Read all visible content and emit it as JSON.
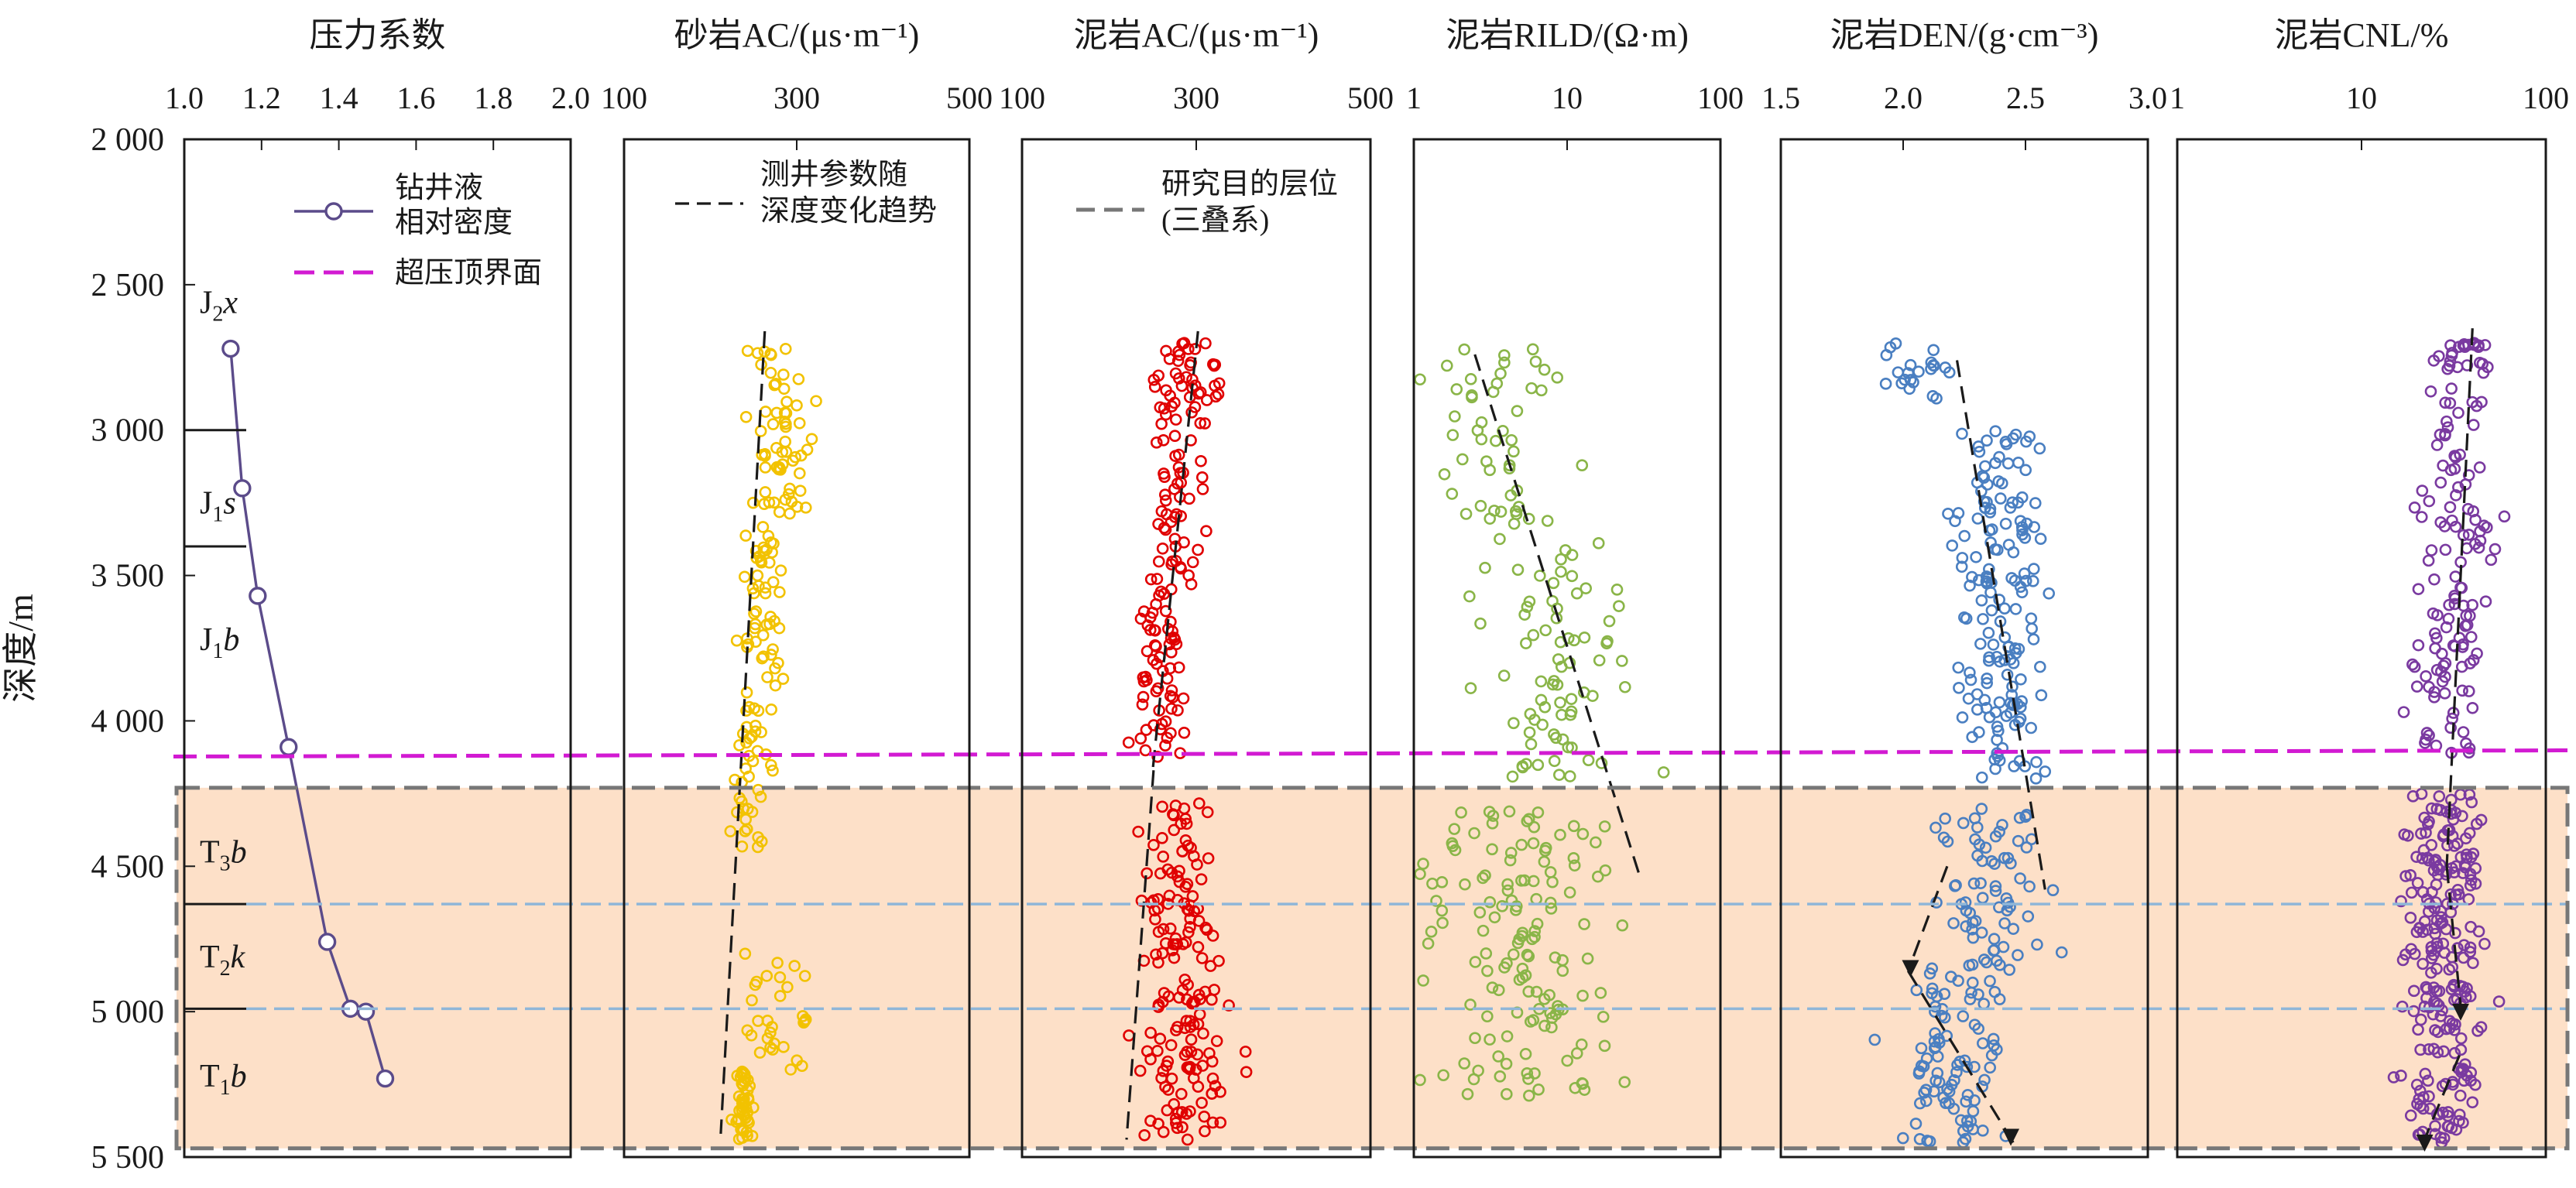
{
  "chart_data": {
    "type": "scatter",
    "shared_y_axis": {
      "label": "深度/m",
      "range": [
        2000,
        5500
      ],
      "ticks": [
        2000,
        2500,
        3000,
        3500,
        4000,
        4500,
        5000,
        5500
      ],
      "tick_labels": [
        "2 000",
        "2 500",
        "3 000",
        "3 500",
        "4 000",
        "4 500",
        "5 000",
        "5 500"
      ]
    },
    "reference_lines": {
      "overpressure_top_depth": 4120,
      "target_zone_depth_range": [
        4230,
        5470
      ],
      "formation_boundaries": [
        3000,
        3400,
        4630,
        4990
      ]
    },
    "formations": [
      "J2x",
      "J1s",
      "J1b",
      "T3b",
      "T2k",
      "T1b"
    ],
    "formation_label_depths": [
      2560,
      3250,
      3720,
      4450,
      4810,
      5220
    ],
    "legend": [
      {
        "label": "钻井液相对密度",
        "line1": "钻井液",
        "line2": "相对密度",
        "style": "line-marker",
        "color": "#5b4b8a"
      },
      {
        "label": "超压顶界面",
        "style": "dashed",
        "color": "#d21ad2"
      },
      {
        "label": "测井参数随深度变化趋势",
        "line1": "测井参数随",
        "line2": "深度变化趋势",
        "style": "dashed",
        "color": "#1a1a1a"
      },
      {
        "label": "研究目的层位(三叠系)",
        "line1": "研究目的层位",
        "line2": "(三叠系)",
        "style": "dashed",
        "color": "#777777"
      }
    ],
    "panels": [
      {
        "id": "pressure",
        "title": "压力系数",
        "scale": "linear",
        "xlim": [
          1.0,
          2.0
        ],
        "ticks": [
          1.0,
          1.2,
          1.4,
          1.6,
          1.8,
          2.0
        ],
        "tick_labels": [
          "1.0",
          "1.2",
          "1.4",
          "1.6",
          "1.8",
          "2.0"
        ],
        "series": [
          {
            "name": "钻井液相对密度",
            "color": "#5b4b8a",
            "x": [
              1.12,
              1.15,
              1.19,
              1.27,
              1.37,
              1.43,
              1.47,
              1.52
            ],
            "y": [
              2720,
              3200,
              3570,
              4090,
              4760,
              4990,
              5000,
              5230
            ]
          }
        ]
      },
      {
        "id": "sand_ac",
        "title": "砂岩AC/(μs·m⁻¹)",
        "scale": "linear",
        "xlim": [
          100,
          500
        ],
        "ticks": [
          100,
          300,
          500
        ],
        "tick_labels": [
          "100",
          "300",
          "500"
        ],
        "trend": [
          {
            "x": [
              263,
              212
            ],
            "y": [
              2660,
              5420
            ]
          }
        ],
        "clusters": [
          {
            "color": "#f2c200",
            "y_range": [
              2720,
              3300
            ],
            "x_mean": 282,
            "x_spread": 38,
            "n": 60
          },
          {
            "color": "#f2c200",
            "y_range": [
              3300,
              4000
            ],
            "x_mean": 262,
            "x_spread": 28,
            "n": 55
          },
          {
            "color": "#f2c200",
            "y_range": [
              4000,
              4450
            ],
            "x_mean": 245,
            "x_spread": 25,
            "n": 35
          },
          {
            "color": "#f2c200",
            "y_range": [
              4800,
              5200
            ],
            "x_mean": 275,
            "x_spread": 35,
            "n": 30
          },
          {
            "color": "#f2c200",
            "y_range": [
              5200,
              5450
            ],
            "x_mean": 238,
            "x_spread": 12,
            "n": 45
          }
        ]
      },
      {
        "id": "mud_ac",
        "title": "泥岩AC/(μs·m⁻¹)",
        "scale": "linear",
        "xlim": [
          100,
          500
        ],
        "ticks": [
          100,
          300,
          500
        ],
        "tick_labels": [
          "100",
          "300",
          "500"
        ],
        "trend": [
          {
            "x": [
              302,
              250
            ],
            "y": [
              2660,
              4170
            ]
          },
          {
            "x": [
              251,
              220
            ],
            "y": [
              4170,
              5440
            ]
          }
        ],
        "clusters": [
          {
            "color": "#e00000",
            "y_range": [
              2700,
              2900
            ],
            "x_mean": 300,
            "x_spread": 38,
            "n": 35
          },
          {
            "color": "#e00000",
            "y_range": [
              2900,
              3500
            ],
            "x_mean": 278,
            "x_spread": 30,
            "n": 55
          },
          {
            "color": "#e00000",
            "y_range": [
              3500,
              4150
            ],
            "x_mean": 262,
            "x_spread": 32,
            "n": 65
          },
          {
            "color": "#e00000",
            "y_range": [
              4280,
              4800
            ],
            "x_mean": 280,
            "x_spread": 48,
            "n": 70
          },
          {
            "color": "#e00000",
            "y_range": [
              4800,
              5450
            ],
            "x_mean": 290,
            "x_spread": 52,
            "n": 95
          }
        ]
      },
      {
        "id": "mud_rild",
        "title": "泥岩RILD/(Ω·m)",
        "scale": "log",
        "xlim": [
          1,
          100
        ],
        "ticks": [
          1,
          10,
          100
        ],
        "tick_labels": [
          "1",
          "10",
          "100"
        ],
        "trend": [
          {
            "x": [
              2.5,
              30
            ],
            "y": [
              2740,
              4540
            ]
          }
        ],
        "clusters": [
          {
            "color": "#8ab548",
            "y_range": [
              2720,
              3300
            ],
            "x_mean": 3.8,
            "x_spread": 0.55,
            "n": 45
          },
          {
            "color": "#8ab548",
            "y_range": [
              3300,
              4200
            ],
            "x_mean": 8.0,
            "x_spread": 0.5,
            "n": 80
          },
          {
            "color": "#8ab548",
            "y_range": [
              4300,
              5300
            ],
            "x_mean": 5.5,
            "x_spread": 0.6,
            "n": 140
          }
        ]
      },
      {
        "id": "mud_den",
        "title": "泥岩DEN/(g·cm⁻³)",
        "scale": "linear",
        "xlim": [
          1.5,
          3.0
        ],
        "ticks": [
          1.5,
          2.0,
          2.5,
          3.0
        ],
        "tick_labels": [
          "1.5",
          "2.0",
          "2.5",
          "3.0"
        ],
        "trend": [
          {
            "x": [
              2.22,
              2.58
            ],
            "y": [
              2760,
              4580
            ]
          },
          {
            "x": [
              2.18,
              2.02
            ],
            "y": [
              4500,
              4860
            ]
          },
          {
            "x": [
              2.02,
              2.45
            ],
            "y": [
              4860,
              5450
            ]
          }
        ],
        "clusters": [
          {
            "color": "#4a7fc1",
            "y_range": [
              2700,
              2900
            ],
            "x_mean": 2.05,
            "x_spread": 0.14,
            "n": 22
          },
          {
            "color": "#4a7fc1",
            "y_range": [
              3000,
              4200
            ],
            "x_mean": 2.4,
            "x_spread": 0.2,
            "n": 160
          },
          {
            "color": "#4a7fc1",
            "y_range": [
              4300,
              4850
            ],
            "x_mean": 2.35,
            "x_spread": 0.2,
            "n": 70
          },
          {
            "color": "#4a7fc1",
            "y_range": [
              4850,
              5450
            ],
            "x_mean": 2.2,
            "x_spread": 0.2,
            "n": 90
          }
        ]
      },
      {
        "id": "mud_cnl",
        "title": "泥岩CNL/%",
        "scale": "log",
        "xlim": [
          1,
          100
        ],
        "ticks": [
          1,
          10,
          100
        ],
        "tick_labels": [
          "1",
          "10",
          "100"
        ],
        "trend": [
          {
            "x": [
              40,
              29
            ],
            "y": [
              2650,
              4500
            ]
          },
          {
            "x": [
              29,
              35
            ],
            "y": [
              4500,
              5020
            ]
          },
          {
            "x": [
              34,
              21
            ],
            "y": [
              5150,
              5470
            ]
          }
        ],
        "clusters": [
          {
            "color": "#7a3aa0",
            "y_range": [
              2700,
              3000
            ],
            "x_mean": 36,
            "x_spread": 0.18,
            "n": 35
          },
          {
            "color": "#7a3aa0",
            "y_range": [
              3000,
              4120
            ],
            "x_mean": 31,
            "x_spread": 0.2,
            "n": 110
          },
          {
            "color": "#7a3aa0",
            "y_range": [
              4250,
              5450
            ],
            "x_mean": 28,
            "x_spread": 0.22,
            "n": 230
          }
        ]
      }
    ]
  }
}
